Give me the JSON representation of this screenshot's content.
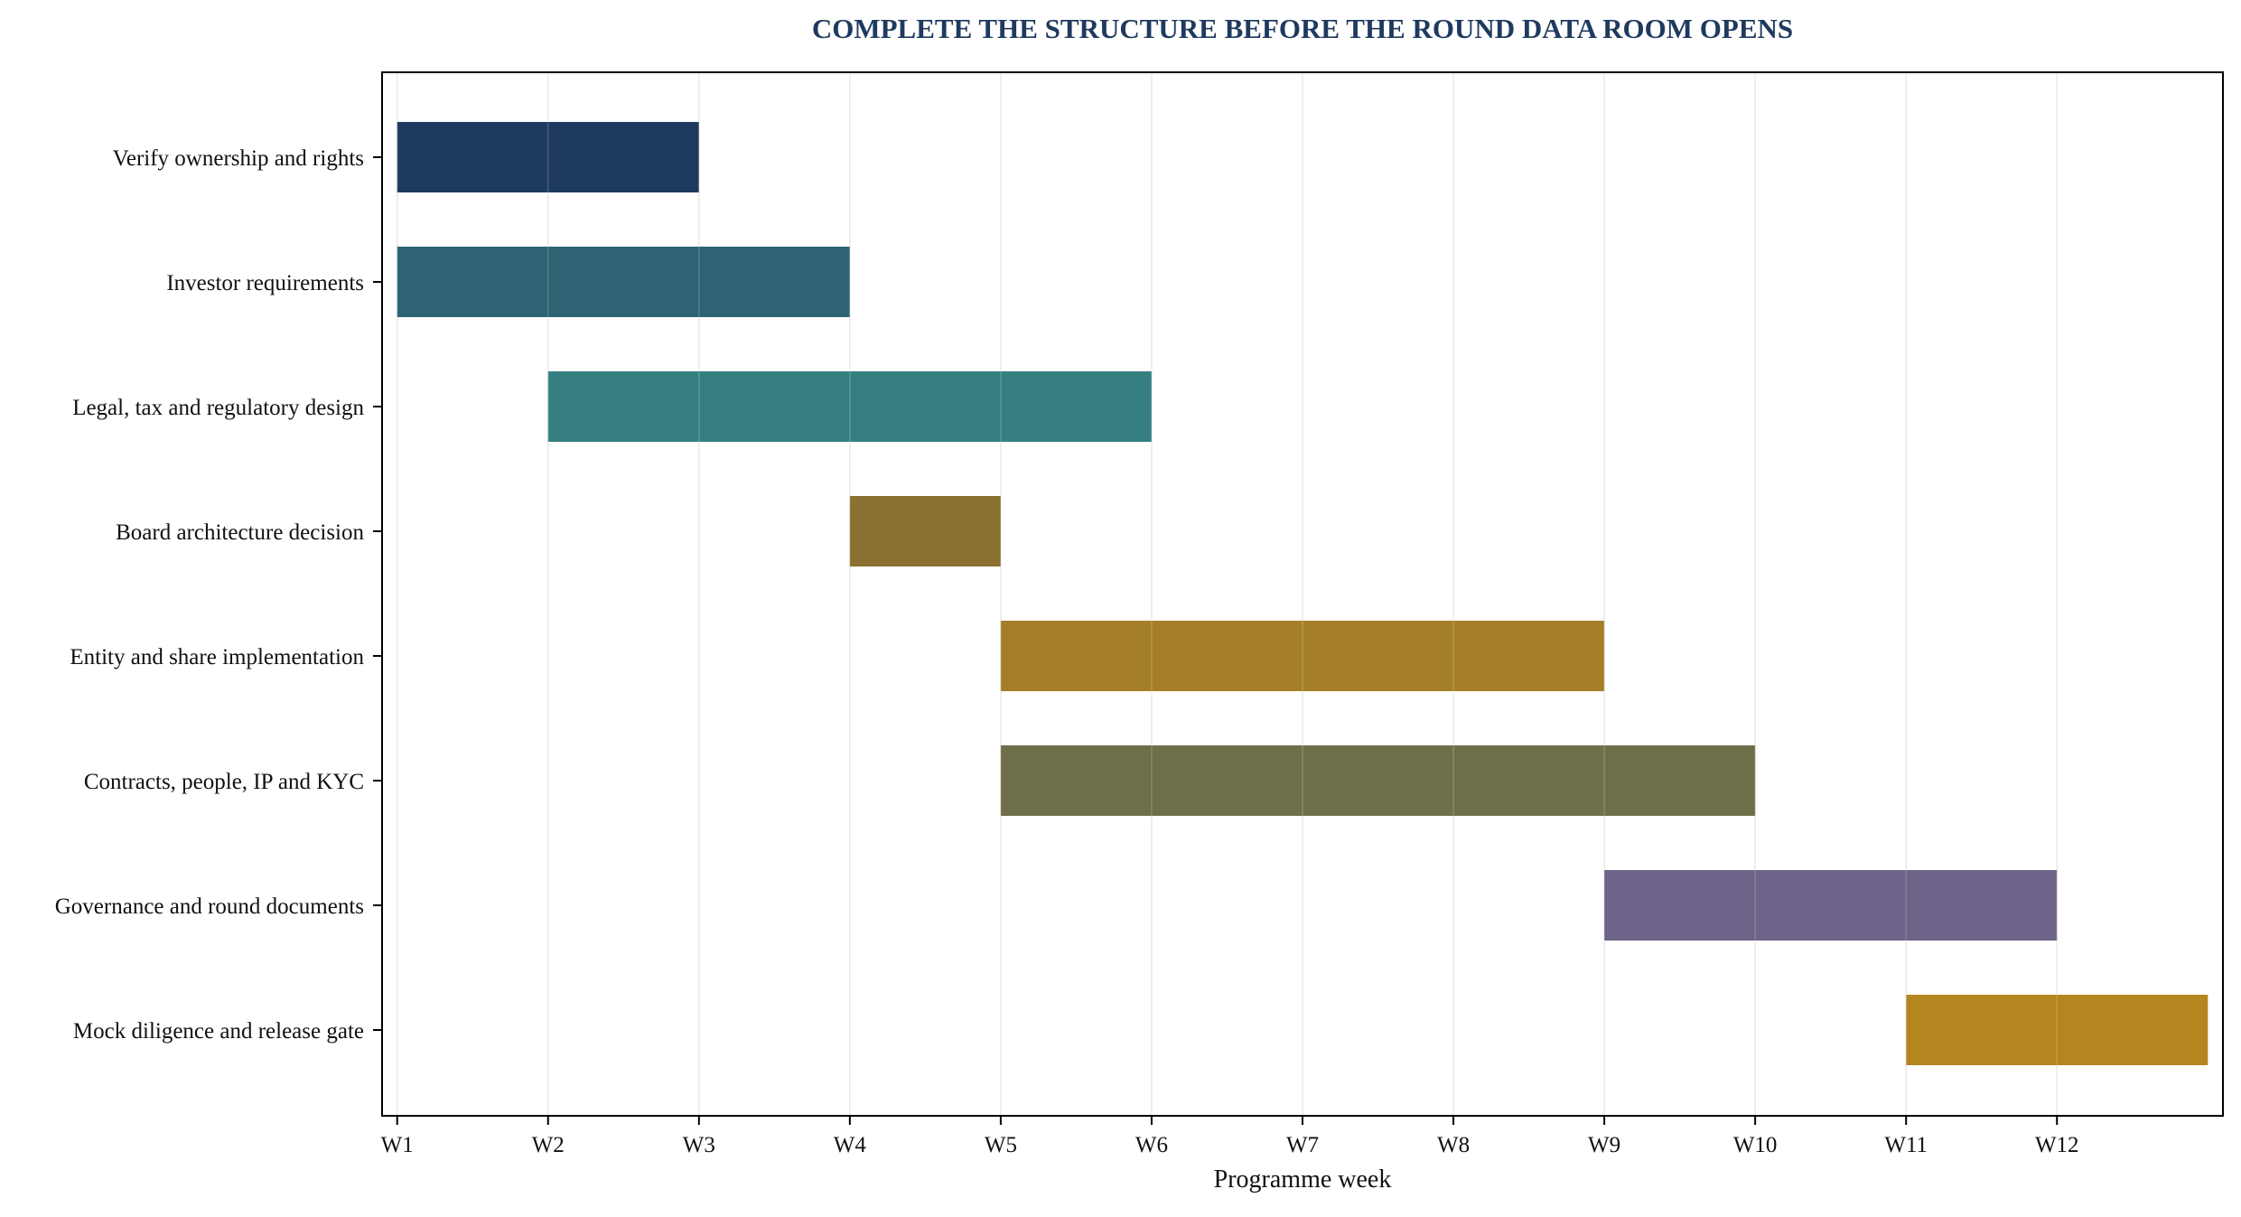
{
  "chart_data": {
    "type": "gantt",
    "title": "COMPLETE THE STRUCTURE BEFORE THE ROUND DATA ROOM OPENS",
    "xlabel": "Programme week",
    "x_tick_labels": [
      "W1",
      "W2",
      "W3",
      "W4",
      "W5",
      "W6",
      "W7",
      "W8",
      "W9",
      "W10",
      "W11",
      "W12"
    ],
    "xlim": [
      0.9,
      13.1
    ],
    "grid": "vertical",
    "tasks": [
      {
        "label": "Verify ownership and rights",
        "start": 1,
        "end": 3,
        "color": "#1f3a5f"
      },
      {
        "label": "Investor requirements",
        "start": 1,
        "end": 4,
        "color": "#2e6374"
      },
      {
        "label": "Legal, tax and regulatory design",
        "start": 2,
        "end": 6,
        "color": "#367f81"
      },
      {
        "label": "Board architecture decision",
        "start": 4,
        "end": 5,
        "color": "#8a7131"
      },
      {
        "label": "Entity and share implementation",
        "start": 5,
        "end": 9,
        "color": "#a57f28"
      },
      {
        "label": "Contracts, people, IP and KYC",
        "start": 5,
        "end": 10,
        "color": "#6f6e4a"
      },
      {
        "label": "Governance and round documents",
        "start": 9,
        "end": 12,
        "color": "#6e6389"
      },
      {
        "label": "Mock diligence and release gate",
        "start": 11,
        "end": 13,
        "color": "#b3861f"
      }
    ],
    "colors": {
      "title": "#1f3a5f",
      "grid": "#e6e6e6",
      "axis": "#000000"
    }
  }
}
